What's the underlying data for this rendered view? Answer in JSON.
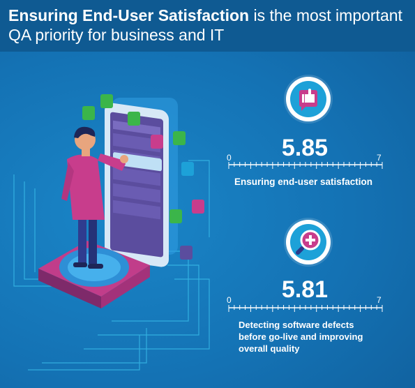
{
  "header": {
    "title_bold": "Ensuring End-User Satisfaction",
    "title_rest": " is the most important QA priority for business and IT"
  },
  "metrics": [
    {
      "value": "5.85",
      "min": "0",
      "max": "7",
      "score": 5.85,
      "label": "Ensuring end-user satisfaction",
      "icon": "thumbs-up-icon"
    },
    {
      "value": "5.81",
      "min": "0",
      "max": "7",
      "score": 5.81,
      "label_lines": [
        "Detecting software defects",
        "before go-live and improving",
        "overall quality"
      ],
      "icon": "magnifier-plus-icon"
    }
  ],
  "colors": {
    "background": "#1472b4",
    "header": "#0f5a92",
    "accent": "#1da1d8",
    "pink": "#c83d8c",
    "green": "#3bb54a"
  }
}
